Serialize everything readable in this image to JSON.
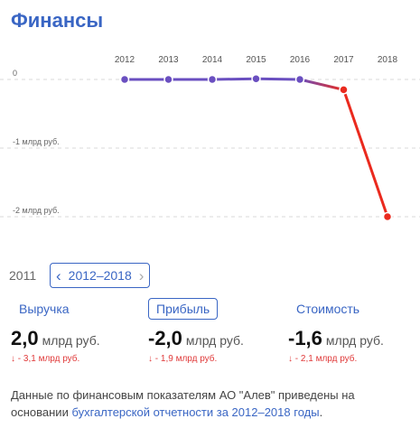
{
  "title": "Финансы",
  "chart_data": {
    "type": "line",
    "x": [
      "2012",
      "2013",
      "2014",
      "2015",
      "2016",
      "2017",
      "2018"
    ],
    "series": [
      {
        "values": [
          0.0,
          0.0,
          0.0,
          0.01,
          0.0,
          -0.15,
          -2.0
        ]
      }
    ],
    "ytick_labels": [
      "0",
      "-1 млрд руб.",
      "-2 млрд руб."
    ],
    "ytick_values": [
      0,
      -1,
      -2
    ],
    "ylim": [
      -2.2,
      0.3
    ],
    "grid": true,
    "colors": {
      "purple": "#6a4fc0",
      "red": "#ea2a1e"
    }
  },
  "period": {
    "prev_label": "2011",
    "range_label": "2012–2018"
  },
  "metrics": [
    {
      "label": "Выручка",
      "value": "2,0",
      "unit": "млрд руб.",
      "change": "↓ - 3,1 млрд руб.",
      "active": false
    },
    {
      "label": "Прибыль",
      "value": "-2,0",
      "unit": "млрд руб.",
      "change": "↓ - 1,9 млрд руб.",
      "active": true
    },
    {
      "label": "Стоимость",
      "value": "-1,6",
      "unit": "млрд руб.",
      "change": "↓ - 2,1 млрд руб.",
      "active": false
    }
  ],
  "footnote": {
    "text_before": "Данные по финансовым показателям АО \"Алев\" приведены на основании ",
    "link_text": "бухгалтерской отчетности за 2012–2018 годы",
    "text_after": "."
  }
}
